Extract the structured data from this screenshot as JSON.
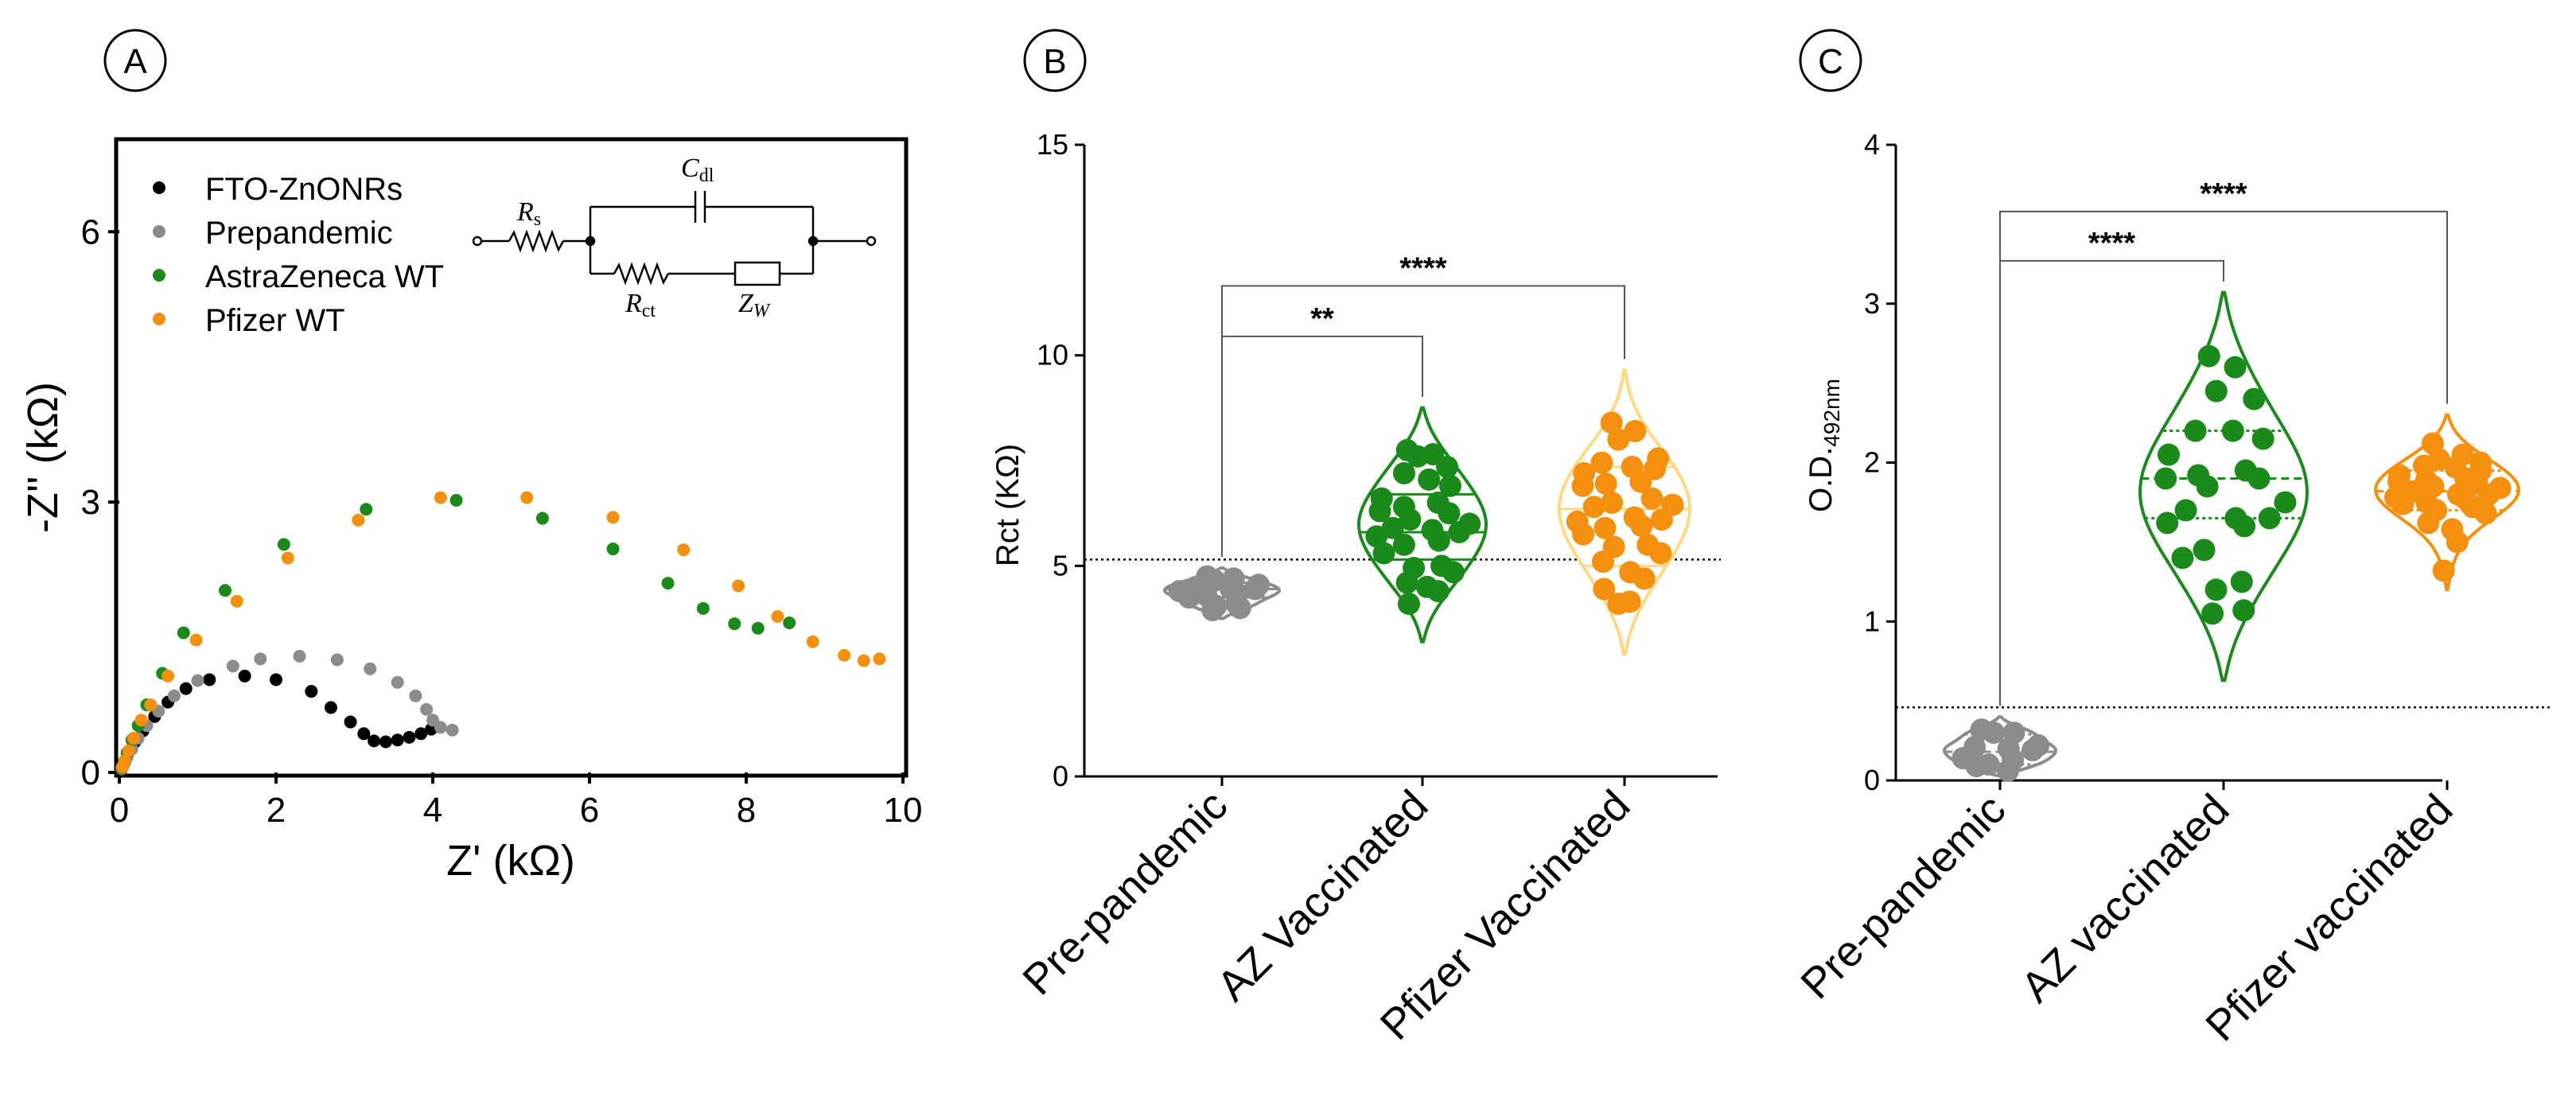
{
  "panels": [
    {
      "label": "A",
      "chart_data": {
        "type": "scatter",
        "title": "",
        "xlabel": "Z' (kΩ)",
        "ylabel": "-Z'' (kΩ)",
        "xlim": [
          0,
          10
        ],
        "ylim": [
          0,
          7
        ],
        "xticks": [
          0,
          2,
          4,
          6,
          8,
          10
        ],
        "yticks": [
          0,
          3,
          6
        ],
        "legend_position": "top-left",
        "series": [
          {
            "name": "FTO-ZnONRs",
            "color": "#000000",
            "points": [
              [
                0.02,
                0.02
              ],
              [
                0.04,
                0.06
              ],
              [
                0.07,
                0.12
              ],
              [
                0.1,
                0.18
              ],
              [
                0.14,
                0.25
              ],
              [
                0.2,
                0.34
              ],
              [
                0.3,
                0.46
              ],
              [
                0.45,
                0.62
              ],
              [
                0.62,
                0.78
              ],
              [
                0.85,
                0.93
              ],
              [
                1.15,
                1.03
              ],
              [
                1.6,
                1.07
              ],
              [
                2.0,
                1.03
              ],
              [
                2.45,
                0.9
              ],
              [
                2.7,
                0.72
              ],
              [
                2.95,
                0.56
              ],
              [
                3.12,
                0.43
              ],
              [
                3.25,
                0.35
              ],
              [
                3.4,
                0.34
              ],
              [
                3.55,
                0.36
              ],
              [
                3.7,
                0.39
              ],
              [
                3.85,
                0.43
              ],
              [
                3.98,
                0.48
              ]
            ]
          },
          {
            "name": "Prepandemic",
            "color": "#8c8c8c",
            "points": [
              [
                0.03,
                0.04
              ],
              [
                0.06,
                0.1
              ],
              [
                0.1,
                0.17
              ],
              [
                0.16,
                0.26
              ],
              [
                0.24,
                0.38
              ],
              [
                0.35,
                0.52
              ],
              [
                0.5,
                0.68
              ],
              [
                0.7,
                0.85
              ],
              [
                1.0,
                1.02
              ],
              [
                1.45,
                1.18
              ],
              [
                1.8,
                1.26
              ],
              [
                2.3,
                1.29
              ],
              [
                2.78,
                1.25
              ],
              [
                3.2,
                1.15
              ],
              [
                3.55,
                1.0
              ],
              [
                3.78,
                0.85
              ],
              [
                3.92,
                0.7
              ],
              [
                4.0,
                0.58
              ],
              [
                4.1,
                0.5
              ],
              [
                4.25,
                0.47
              ]
            ]
          },
          {
            "name": "AstraZeneca WT",
            "color": "#1a8a1a",
            "points": [
              [
                0.03,
                0.05
              ],
              [
                0.06,
                0.12
              ],
              [
                0.1,
                0.22
              ],
              [
                0.16,
                0.36
              ],
              [
                0.24,
                0.52
              ],
              [
                0.35,
                0.75
              ],
              [
                0.55,
                1.1
              ],
              [
                0.82,
                1.55
              ],
              [
                1.35,
                2.02
              ],
              [
                2.1,
                2.53
              ],
              [
                3.15,
                2.92
              ],
              [
                4.3,
                3.02
              ],
              [
                5.4,
                2.82
              ],
              [
                6.3,
                2.48
              ],
              [
                7.0,
                2.1
              ],
              [
                7.45,
                1.82
              ],
              [
                7.85,
                1.65
              ],
              [
                8.15,
                1.6
              ],
              [
                8.55,
                1.66
              ]
            ]
          },
          {
            "name": "Pfizer WT",
            "color": "#f5900f",
            "points": [
              [
                0.04,
                0.06
              ],
              [
                0.07,
                0.13
              ],
              [
                0.12,
                0.24
              ],
              [
                0.18,
                0.38
              ],
              [
                0.28,
                0.58
              ],
              [
                0.4,
                0.75
              ],
              [
                0.62,
                1.07
              ],
              [
                0.98,
                1.47
              ],
              [
                1.5,
                1.9
              ],
              [
                2.15,
                2.38
              ],
              [
                3.05,
                2.8
              ],
              [
                4.1,
                3.05
              ],
              [
                5.2,
                3.05
              ],
              [
                6.3,
                2.83
              ],
              [
                7.2,
                2.47
              ],
              [
                7.9,
                2.07
              ],
              [
                8.4,
                1.73
              ],
              [
                8.85,
                1.45
              ],
              [
                9.25,
                1.3
              ],
              [
                9.5,
                1.24
              ],
              [
                9.7,
                1.26
              ]
            ]
          }
        ],
        "inset": {
          "rs": "R",
          "rs_sub": "s",
          "cdl": "C",
          "cdl_sub": "dl",
          "rct": "R",
          "rct_sub": "ct",
          "zw": "Z",
          "zw_sub": "W"
        }
      }
    },
    {
      "label": "B",
      "chart_data": {
        "type": "violin",
        "title": "",
        "xlabel": "",
        "ylabel": "Rct (KΩ)",
        "ylim": [
          0,
          15
        ],
        "yticks": [
          0,
          5,
          10,
          15
        ],
        "threshold": 5.15,
        "categories": [
          "Pre-pandemic",
          "AZ Vaccinated",
          "Pfizer Vaccinated"
        ],
        "groups": [
          {
            "name": "Pre-pandemic",
            "fill": "#ffffff",
            "stroke": "#8c8c8c",
            "dot": "#8c8c8c",
            "range": [
              3.75,
              4.95
            ],
            "quartiles": [
              4.25,
              4.45,
              4.6
            ],
            "values": [
              4.75,
              4.65,
              4.7,
              4.55,
              4.5,
              4.45,
              4.45,
              4.4,
              4.35,
              4.3,
              4.25,
              4.1,
              4.05,
              3.95,
              4.0
            ]
          },
          {
            "name": "AZ Vaccinated",
            "fill": "#ffffff",
            "stroke": "#1a8a1a",
            "dot": "#1a8a1a",
            "range": [
              3.2,
              8.75
            ],
            "quartiles": [
              5.15,
              5.8,
              6.7
            ],
            "values": [
              7.75,
              7.65,
              7.6,
              7.35,
              7.2,
              7.05,
              6.9,
              6.6,
              6.5,
              6.4,
              6.3,
              6.25,
              6.1,
              6.0,
              5.9,
              5.85,
              5.8,
              5.7,
              5.6,
              5.5,
              5.3,
              5.0,
              4.95,
              4.85,
              4.6,
              4.5,
              4.4,
              4.1
            ]
          },
          {
            "name": "Pfizer Vaccinated",
            "fill": "#ffffff",
            "stroke": "#ffd880",
            "dot": "#f5900f",
            "range": [
              2.9,
              9.65
            ],
            "quartiles": [
              5.0,
              6.35,
              7.35
            ],
            "values": [
              8.4,
              8.2,
              8.0,
              7.55,
              7.45,
              7.35,
              7.3,
              7.2,
              7.0,
              6.95,
              6.9,
              6.6,
              6.5,
              6.45,
              6.4,
              6.15,
              6.1,
              6.05,
              5.95,
              5.9,
              5.75,
              5.5,
              5.45,
              5.3,
              5.1,
              4.85,
              4.7,
              4.45,
              4.15,
              4.1
            ]
          }
        ],
        "significance": [
          {
            "from": 0,
            "to": 1,
            "y": 10.45,
            "label": "**"
          },
          {
            "from": 0,
            "to": 2,
            "y": 11.65,
            "label": "****"
          }
        ]
      }
    },
    {
      "label": "C",
      "chart_data": {
        "type": "violin",
        "title": "",
        "xlabel": "",
        "ylabel": "O.D.",
        "ylabel_sub": "492nm",
        "ylim": [
          0,
          4
        ],
        "yticks": [
          0,
          1,
          2,
          3,
          4
        ],
        "threshold": 0.46,
        "categories": [
          "Pre-pandemic",
          "AZ vaccinated",
          "Pfizer vaccinated"
        ],
        "groups": [
          {
            "name": "Pre-pandemic",
            "fill": "#ffffff",
            "stroke": "#8c8c8c",
            "dot": "#8c8c8c",
            "range": [
              0.03,
              0.4
            ],
            "quartiles": [
              0.1,
              0.18,
              0.29
            ],
            "values": [
              0.32,
              0.3,
              0.3,
              0.22,
              0.21,
              0.2,
              0.19,
              0.14,
              0.13,
              0.1,
              0.09,
              0.06
            ]
          },
          {
            "name": "AZ vaccinated",
            "fill": "#ffffff",
            "stroke": "#1a8a1a",
            "dot": "#1a8a1a",
            "range": [
              0.63,
              3.07
            ],
            "quartiles": [
              1.65,
              1.9,
              2.2
            ],
            "values": [
              2.67,
              2.6,
              2.45,
              2.4,
              2.2,
              2.2,
              2.15,
              2.05,
              1.95,
              1.92,
              1.9,
              1.9,
              1.85,
              1.75,
              1.7,
              1.65,
              1.65,
              1.62,
              1.6,
              1.45,
              1.4,
              1.25,
              1.2,
              1.07,
              1.05
            ]
          },
          {
            "name": "Pfizer vaccinated",
            "fill": "#ffffff",
            "stroke": "#f5900f",
            "dot": "#f5900f",
            "range": [
              1.2,
              2.3
            ],
            "quartiles": [
              1.7,
              1.82,
              1.95
            ],
            "values": [
              2.12,
              2.05,
              2.02,
              2.0,
              1.98,
              1.97,
              1.95,
              1.92,
              1.9,
              1.89,
              1.88,
              1.87,
              1.85,
              1.84,
              1.82,
              1.8,
              1.8,
              1.78,
              1.77,
              1.75,
              1.74,
              1.72,
              1.7,
              1.68,
              1.62,
              1.58,
              1.5,
              1.32
            ]
          }
        ],
        "significance": [
          {
            "from": 0,
            "to": 1,
            "y": 3.27,
            "label": "****"
          },
          {
            "from": 0,
            "to": 2,
            "y": 3.58,
            "label": "****"
          }
        ]
      }
    }
  ]
}
